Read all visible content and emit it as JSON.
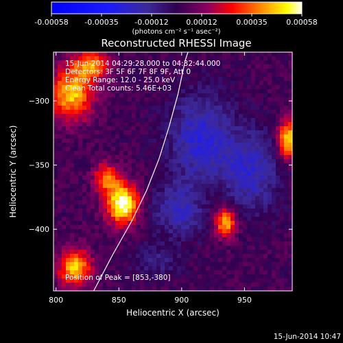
{
  "chart_data": {
    "type": "heatmap",
    "title": "Reconstructed RHESSI Image",
    "xlabel": "Heliocentric X (arcsec)",
    "ylabel": "Heliocentric Y (arcsec)",
    "xlim": [
      798,
      988
    ],
    "ylim": [
      -448,
      -262
    ],
    "x_ticks": [
      800,
      850,
      900,
      950
    ],
    "y_ticks": [
      -300,
      -350,
      -400
    ],
    "colorbar": {
      "range": [
        -0.00058,
        0.00058
      ],
      "ticks": [
        "-0.00058",
        "-0.00035",
        "-0.00012",
        "0.00012",
        "0.00035",
        "0.00058"
      ],
      "unit_label": "(photons cm⁻² s⁻¹ asec⁻²)"
    },
    "info_lines": [
      "15-Jun-2014 04:29:28.000 to 04:32:44.000",
      "Detectors: 3F 5F 6F 7F 8F 9F, Att 0",
      "Energy Range: 12.0 - 25.0 keV",
      "Clean     Total counts: 5.46E+03"
    ],
    "peak_label": "Position of Peak = [853,-380]",
    "limb_curve": [
      [
        830,
        -448
      ],
      [
        845,
        -420
      ],
      [
        860,
        -394
      ],
      [
        872,
        -370
      ],
      [
        882,
        -345
      ],
      [
        890,
        -320
      ],
      [
        897,
        -295
      ],
      [
        903,
        -268
      ],
      [
        905,
        -262
      ]
    ],
    "sources": [
      {
        "x": 853,
        "y": -380,
        "amp": 1.0,
        "sx": 9,
        "sy": 11
      },
      {
        "x": 840,
        "y": -360,
        "amp": 0.55,
        "sx": 7,
        "sy": 8
      },
      {
        "x": 812,
        "y": -295,
        "amp": 0.75,
        "sx": 12,
        "sy": 14
      },
      {
        "x": 828,
        "y": -272,
        "amp": 0.6,
        "sx": 10,
        "sy": 8
      },
      {
        "x": 985,
        "y": -330,
        "amp": 0.85,
        "sx": 6,
        "sy": 10
      },
      {
        "x": 935,
        "y": -395,
        "amp": 0.75,
        "sx": 6,
        "sy": 8
      },
      {
        "x": 815,
        "y": -430,
        "amp": 0.75,
        "sx": 9,
        "sy": 10
      },
      {
        "x": 920,
        "y": -375,
        "amp": 0.15,
        "sx": 12,
        "sy": 12
      }
    ],
    "negatives": [
      {
        "x": 915,
        "y": -330,
        "amp": -0.45,
        "sx": 18,
        "sy": 25
      },
      {
        "x": 955,
        "y": -355,
        "amp": -0.4,
        "sx": 16,
        "sy": 22
      },
      {
        "x": 900,
        "y": -385,
        "amp": -0.4,
        "sx": 16,
        "sy": 14
      },
      {
        "x": 880,
        "y": -425,
        "amp": -0.2,
        "sx": 14,
        "sy": 10
      }
    ]
  },
  "footer": {
    "timestamp": "15-Jun-2014 10:47"
  }
}
